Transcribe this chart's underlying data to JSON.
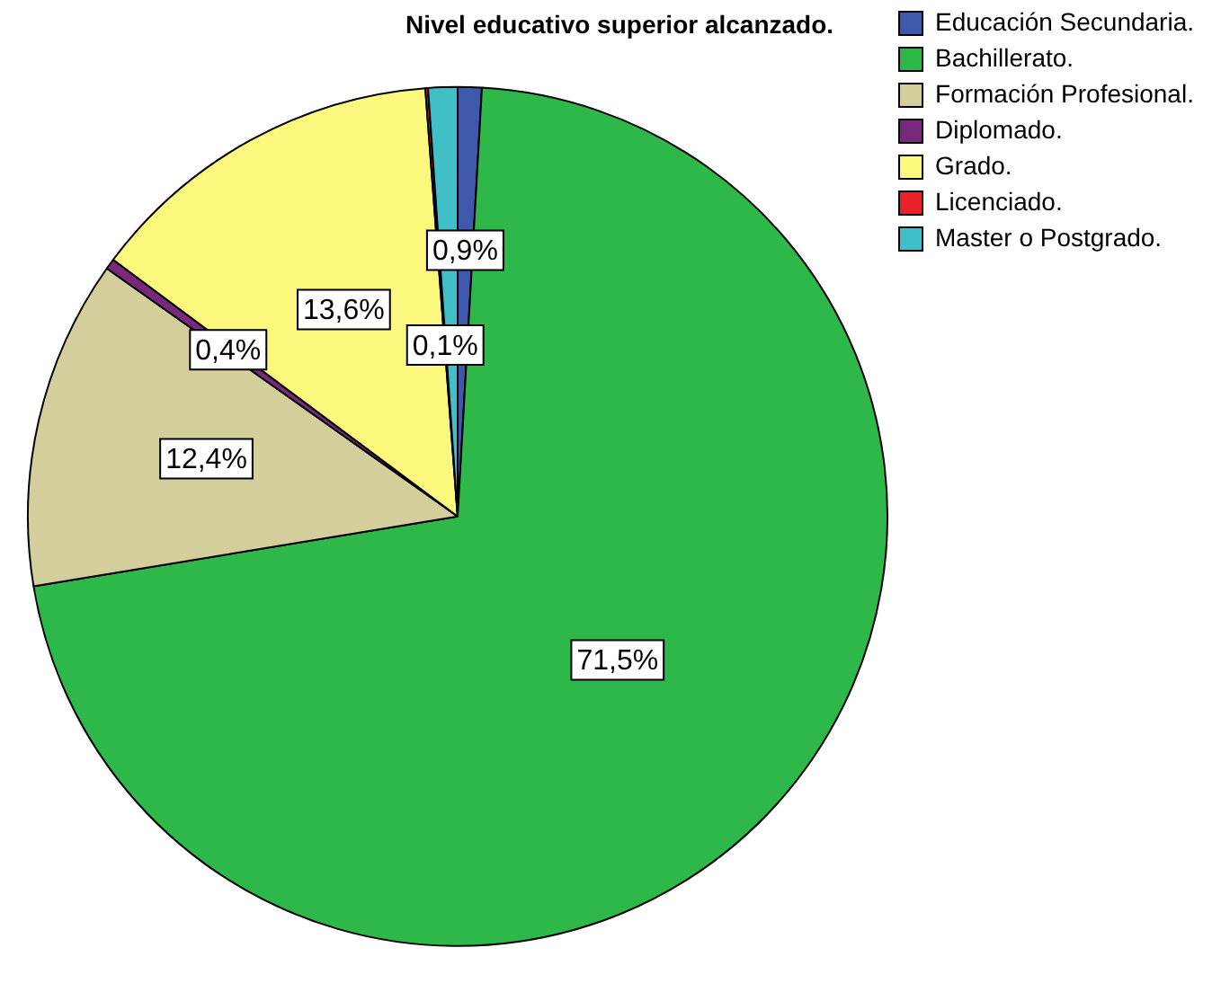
{
  "chart_data": {
    "type": "pie",
    "title": "Nivel educativo superior alcanzado.",
    "categories": [
      "Educación Secundaria.",
      "Bachillerato.",
      "Formación Profesional.",
      "Diplomado.",
      "Grado.",
      "Licenciado.",
      "Master o Postgrado."
    ],
    "values": [
      0.9,
      71.5,
      12.4,
      0.4,
      13.6,
      0.1,
      1.1
    ],
    "value_labels": [
      "0,9%",
      "71,5%",
      "12,4%",
      "0,4%",
      "13,6%",
      "0,1%",
      null
    ],
    "colors": [
      "#3e58ac",
      "#2eb84a",
      "#d3ce9c",
      "#79297b",
      "#fbf87d",
      "#e8212a",
      "#40bfc8"
    ],
    "legend": "top right"
  }
}
